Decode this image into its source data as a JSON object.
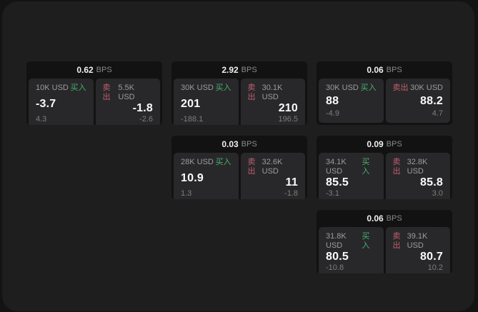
{
  "labels": {
    "buy": "买入",
    "sell": "卖出",
    "bps": "BPS"
  },
  "colors": {
    "buy": "#45b26e",
    "sell": "#c25e6e",
    "panel": "#28282a"
  },
  "cards": [
    {
      "bps": "0.62",
      "buy": {
        "amount": "10K USD",
        "price": "-3.7",
        "delta": "4.3"
      },
      "sell": {
        "amount": "5.5K USD",
        "price": "-1.8",
        "delta": "-2.6"
      }
    },
    {
      "bps": "2.92",
      "buy": {
        "amount": "30K USD",
        "price": "201",
        "delta": "-188.1"
      },
      "sell": {
        "amount": "30.1K USD",
        "price": "210",
        "delta": "196.5"
      }
    },
    {
      "bps": "0.06",
      "buy": {
        "amount": "30K USD",
        "price": "88",
        "delta": "-4.9"
      },
      "sell": {
        "amount": "30K USD",
        "price": "88.2",
        "delta": "4.7"
      }
    },
    {
      "bps": "0.03",
      "buy": {
        "amount": "28K USD",
        "price": "10.9",
        "delta": "1.3"
      },
      "sell": {
        "amount": "32.6K USD",
        "price": "11",
        "delta": "-1.8"
      }
    },
    {
      "bps": "0.09",
      "buy": {
        "amount": "34.1K USD",
        "price": "85.5",
        "delta": "-3.1"
      },
      "sell": {
        "amount": "32.8K USD",
        "price": "85.8",
        "delta": "3.0"
      }
    },
    {
      "bps": "0.06",
      "buy": {
        "amount": "31.8K USD",
        "price": "80.5",
        "delta": "-10.8"
      },
      "sell": {
        "amount": "39.1K USD",
        "price": "80.7",
        "delta": "10.2"
      }
    }
  ]
}
